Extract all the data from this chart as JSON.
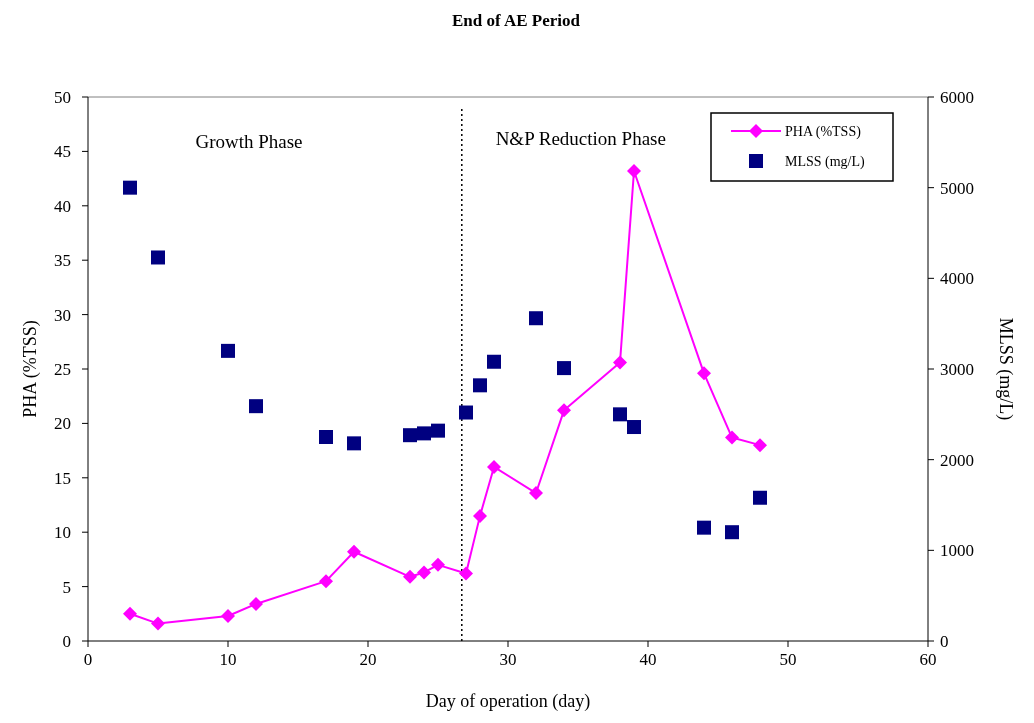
{
  "chart_data": {
    "type": "line",
    "title": "End of AE Period",
    "xlabel": "Day of operation (day)",
    "ylabel": "PHA (%TSS)",
    "y2label": "MLSS (mg/L)",
    "xlim": [
      0,
      60
    ],
    "xticks": [
      0,
      10,
      20,
      30,
      40,
      50,
      60
    ],
    "ylim": [
      0,
      50
    ],
    "yticks": [
      0,
      5,
      10,
      15,
      20,
      25,
      30,
      35,
      40,
      45,
      50
    ],
    "y2lim": [
      0,
      6000
    ],
    "y2ticks": [
      0,
      1000,
      2000,
      3000,
      4000,
      5000,
      6000
    ],
    "grid": false,
    "legend": "top right",
    "annotations": [
      "Growth Phase",
      "N&P Reduction Phase"
    ],
    "ref_lines": [
      {
        "axis": "x",
        "value": 26.7,
        "color": "#000000",
        "line_style": "dotted"
      }
    ],
    "series": [
      {
        "name": "PHA (%TSS)",
        "color": "#ff00ff",
        "marker": "diamond",
        "line_style": "solid",
        "x": [
          3,
          5,
          10,
          12,
          17,
          19,
          23,
          24,
          25,
          27,
          28,
          29,
          32,
          34,
          38,
          39,
          44,
          46,
          48
        ],
        "values": [
          2.5,
          1.6,
          2.3,
          3.4,
          5.5,
          8.2,
          5.9,
          6.3,
          7.0,
          6.2,
          11.5,
          16.0,
          13.6,
          21.2,
          25.6,
          43.2,
          24.6,
          18.7,
          18.0
        ],
        "errors": [
          null,
          null,
          0.5,
          null,
          null,
          0.5,
          null,
          null,
          null,
          null,
          null,
          null,
          null,
          null,
          null,
          null,
          null,
          0.5,
          0.5
        ]
      },
      {
        "name": "MLSS (mg/L)",
        "type": "scatter",
        "axis": "y2",
        "color": "#000080",
        "marker": "square",
        "x": [
          3,
          5,
          10,
          12,
          17,
          19,
          23,
          24,
          25,
          27,
          28,
          29,
          32,
          34,
          38,
          39,
          44,
          46,
          48
        ],
        "values": [
          5000,
          4230,
          3200,
          2590,
          2250,
          2180,
          2270,
          2290,
          2320,
          2520,
          2820,
          3080,
          3560,
          3010,
          2500,
          2360,
          1250,
          1200,
          1580
        ]
      }
    ]
  }
}
